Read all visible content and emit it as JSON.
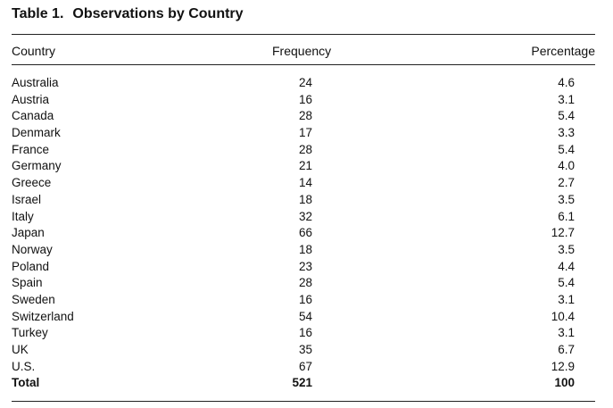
{
  "table": {
    "number": "Table 1.",
    "title": "Observations by Country",
    "headers": {
      "country": "Country",
      "frequency": "Frequency",
      "percentage": "Percentage"
    },
    "rows": [
      {
        "country": "Australia",
        "frequency": "24",
        "percentage": "4.6"
      },
      {
        "country": "Austria",
        "frequency": "16",
        "percentage": "3.1"
      },
      {
        "country": "Canada",
        "frequency": "28",
        "percentage": "5.4"
      },
      {
        "country": "Denmark",
        "frequency": "17",
        "percentage": "3.3"
      },
      {
        "country": "France",
        "frequency": "28",
        "percentage": "5.4"
      },
      {
        "country": "Germany",
        "frequency": "21",
        "percentage": "4.0"
      },
      {
        "country": "Greece",
        "frequency": "14",
        "percentage": "2.7"
      },
      {
        "country": "Israel",
        "frequency": "18",
        "percentage": "3.5"
      },
      {
        "country": "Italy",
        "frequency": "32",
        "percentage": "6.1"
      },
      {
        "country": "Japan",
        "frequency": "66",
        "percentage": "12.7"
      },
      {
        "country": "Norway",
        "frequency": "18",
        "percentage": "3.5"
      },
      {
        "country": "Poland",
        "frequency": "23",
        "percentage": "4.4"
      },
      {
        "country": "Spain",
        "frequency": "28",
        "percentage": "5.4"
      },
      {
        "country": "Sweden",
        "frequency": "16",
        "percentage": "3.1"
      },
      {
        "country": "Switzerland",
        "frequency": "54",
        "percentage": "10.4"
      },
      {
        "country": "Turkey",
        "frequency": "16",
        "percentage": "3.1"
      },
      {
        "country": "UK",
        "frequency": "35",
        "percentage": "6.7"
      },
      {
        "country": "U.S.",
        "frequency": "67",
        "percentage": "12.9"
      }
    ],
    "total": {
      "label": "Total",
      "frequency": "521",
      "percentage": "100"
    }
  }
}
